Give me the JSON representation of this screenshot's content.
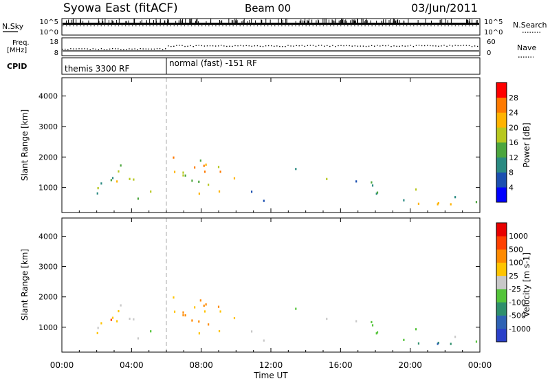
{
  "header": {
    "title": "Syowa East (fitACF)",
    "beam": "Beam 00",
    "date": "03/Jun/2011"
  },
  "top_panels": {
    "nsky_label": "N.Sky",
    "nsky_ticks": [
      "10^5",
      "10^0"
    ],
    "nsearch_label": "N.Search",
    "nsearch_ticks": [
      "10^5",
      "10^0"
    ],
    "freq_label_1": "Freq.",
    "freq_label_2": "[MHz]",
    "freq_ticks": [
      "18",
      "8"
    ],
    "nave_label": "Nave",
    "nave_ticks": [
      "60",
      "0"
    ],
    "cpid_label": "CPID",
    "cpid_segments": [
      {
        "label": "themis 3300 RF",
        "start_hour": 0,
        "end_hour": 6
      },
      {
        "label": "normal (fast) -151 RF",
        "start_hour": 6,
        "end_hour": 24
      }
    ]
  },
  "chart_data": [
    {
      "type": "heatmap",
      "title": "Power",
      "ylabel": "Slant Range [km]",
      "xlabel": "",
      "ylim": [
        180,
        4600
      ],
      "xlim_hours": [
        0,
        24
      ],
      "yticks": [
        "1000",
        "2000",
        "3000",
        "4000"
      ],
      "colorbar_label": "Power [dB]",
      "colorbar_ticks": [
        "28",
        "24",
        "20",
        "16",
        "12",
        "8",
        "4"
      ],
      "colorbar_colors": [
        "#0000ff",
        "#1b4fb0",
        "#2a8a82",
        "#4ca63e",
        "#b7c81f",
        "#ffb300",
        "#ff7a00",
        "#ff0000"
      ],
      "value_range": [
        0,
        32
      ]
    },
    {
      "type": "heatmap",
      "title": "Velocity",
      "ylabel": "Slant Range [km]",
      "xlabel": "Time UT",
      "ylim": [
        180,
        4600
      ],
      "xlim_hours": [
        0,
        24
      ],
      "yticks": [
        "1000",
        "2000",
        "3000",
        "4000"
      ],
      "xticks": [
        "00:00",
        "04:00",
        "08:00",
        "12:00",
        "16:00",
        "20:00",
        "00:00"
      ],
      "colorbar_label": "Velocity [m s-1]",
      "colorbar_ticks": [
        "1000",
        "500",
        "100",
        "25",
        "-25",
        "-100",
        "-500",
        "-1000"
      ],
      "colorbar_colors": [
        "#2a40c8",
        "#2e62b4",
        "#2e8f6c",
        "#54c43a",
        "#c8c8c8",
        "#ffc400",
        "#ff8a00",
        "#ff4000",
        "#e80000"
      ],
      "value_range": [
        -1200,
        1200
      ]
    }
  ]
}
